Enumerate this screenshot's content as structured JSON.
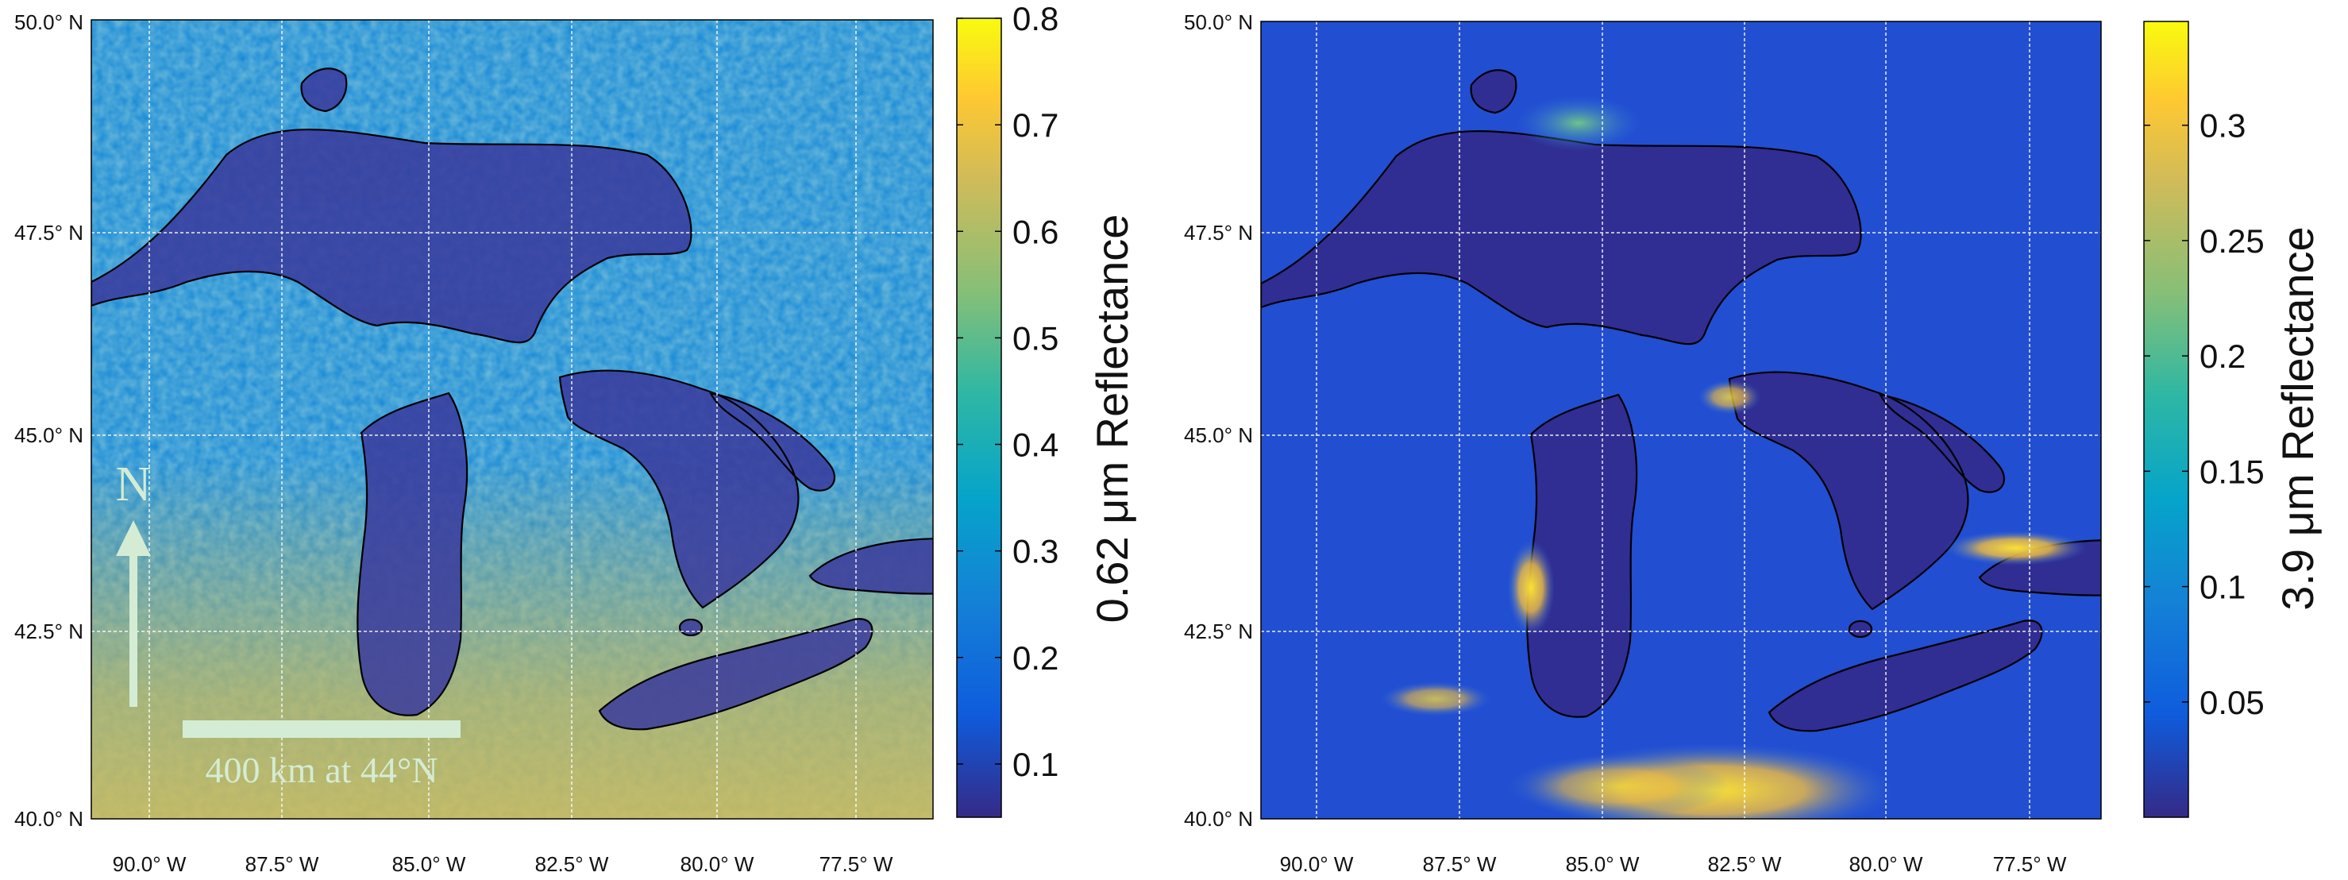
{
  "panels": [
    {
      "id": "visible",
      "lat_labels": [
        "50.0° N",
        "47.5° N",
        "45.0° N",
        "42.5° N",
        "40.0° N"
      ],
      "lon_labels": [
        "90.0° W",
        "87.5° W",
        "85.0° W",
        "82.5° W",
        "80.0° W",
        "77.5° W"
      ],
      "colorbar": {
        "label": "0.62 μm Reflectance",
        "ticks": [
          "0.8",
          "0.7",
          "0.6",
          "0.5",
          "0.4",
          "0.3",
          "0.2",
          "0.1"
        ],
        "range": [
          0.05,
          0.8
        ]
      },
      "north_arrow_label": "N",
      "scale_bar_label": "400 km at 44°N"
    },
    {
      "id": "shortwave-ir",
      "lat_labels": [
        "50.0° N",
        "47.5° N",
        "45.0° N",
        "42.5° N",
        "40.0° N"
      ],
      "lon_labels": [
        "90.0° W",
        "87.5° W",
        "85.0° W",
        "82.5° W",
        "80.0° W",
        "77.5° W"
      ],
      "colorbar": {
        "label": "3.9 μm Reflectance",
        "ticks": [
          "0.3",
          "0.25",
          "0.2",
          "0.15",
          "0.1",
          "0.05"
        ],
        "range": [
          0.0,
          0.345
        ]
      }
    }
  ],
  "colors": {
    "parula_top": "#f9fb0e",
    "parula_mid": "#13bdb7",
    "parula_bottom": "#352a87",
    "grid": "#ffffff",
    "overlay": "#d5ecd4",
    "coastline": "#000000"
  }
}
